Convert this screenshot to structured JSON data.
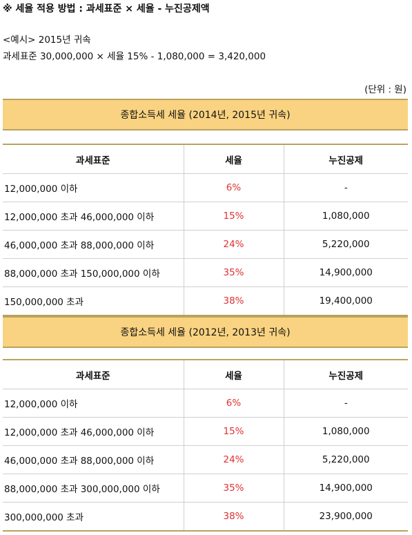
{
  "header": {
    "title": "※ 세율 적용 방법 : 과세표준 × 세율 - 누진공제액",
    "example": "<예시> 2015년 귀속",
    "calc": "과세표준 30,000,000 × 세율 15% - 1,080,000 = 3,420,000",
    "unit": "(단위 : 원)"
  },
  "columns": [
    "과세표준",
    "세율",
    "누진공제"
  ],
  "tables": [
    {
      "title": "종합소득세 세율 (2014년, 2015년 귀속)",
      "rows": [
        {
          "base": "12,000,000 이하",
          "rate": "6%",
          "deduction": "-"
        },
        {
          "base": "12,000,000 초과 46,000,000 이하",
          "rate": "15%",
          "deduction": "1,080,000"
        },
        {
          "base": "46,000,000 초과 88,000,000 이하",
          "rate": "24%",
          "deduction": "5,220,000"
        },
        {
          "base": "88,000,000 초과 150,000,000 이하",
          "rate": "35%",
          "deduction": "14,900,000"
        },
        {
          "base": "150,000,000 초과",
          "rate": "38%",
          "deduction": "19,400,000"
        }
      ]
    },
    {
      "title": "종합소득세 세율 (2012년, 2013년 귀속)",
      "rows": [
        {
          "base": "12,000,000 이하",
          "rate": "6%",
          "deduction": "-"
        },
        {
          "base": "12,000,000 초과 46,000,000 이하",
          "rate": "15%",
          "deduction": "1,080,000"
        },
        {
          "base": "46,000,000 초과 88,000,000 이하",
          "rate": "24%",
          "deduction": "5,220,000"
        },
        {
          "base": "88,000,000 초과 300,000,000 이하",
          "rate": "35%",
          "deduction": "14,900,000"
        },
        {
          "base": "300,000,000 초과",
          "rate": "38%",
          "deduction": "23,900,000"
        }
      ]
    }
  ],
  "colors": {
    "band": "#f9d381",
    "rate_text": "#e03030",
    "border": "#b9a25e"
  }
}
